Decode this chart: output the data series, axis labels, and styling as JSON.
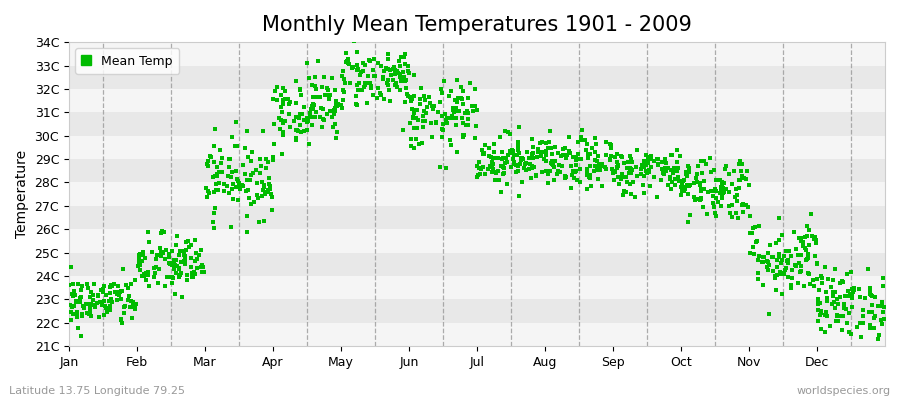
{
  "title": "Monthly Mean Temperatures 1901 - 2009",
  "ylabel": "Temperature",
  "xlabel": "",
  "ylim": [
    21,
    34
  ],
  "ytick_labels": [
    "21C",
    "22C",
    "23C",
    "24C",
    "25C",
    "26C",
    "27C",
    "28C",
    "29C",
    "30C",
    "31C",
    "32C",
    "33C",
    "34C"
  ],
  "ytick_values": [
    21,
    22,
    23,
    24,
    25,
    26,
    27,
    28,
    29,
    30,
    31,
    32,
    33,
    34
  ],
  "months": [
    "Jan",
    "Feb",
    "Mar",
    "Apr",
    "May",
    "Jun",
    "Jul",
    "Aug",
    "Sep",
    "Oct",
    "Nov",
    "Dec"
  ],
  "month_means": [
    22.9,
    24.5,
    28.2,
    31.2,
    32.5,
    30.8,
    29.0,
    28.8,
    28.5,
    27.8,
    24.8,
    22.8
  ],
  "month_stds": [
    0.55,
    0.65,
    0.85,
    0.75,
    0.65,
    0.75,
    0.55,
    0.55,
    0.5,
    0.7,
    0.85,
    0.75
  ],
  "n_years": 109,
  "dot_color": "#00bb00",
  "dot_size": 5,
  "background_color": "#ffffff",
  "band_colors": [
    "#f5f5f5",
    "#e8e8e8"
  ],
  "grid_color": "#999999",
  "legend_label": "Mean Temp",
  "bottom_left_text": "Latitude 13.75 Longitude 79.25",
  "bottom_right_text": "worldspecies.org",
  "title_fontsize": 15,
  "axis_label_fontsize": 10,
  "tick_fontsize": 9,
  "annotation_fontsize": 8
}
